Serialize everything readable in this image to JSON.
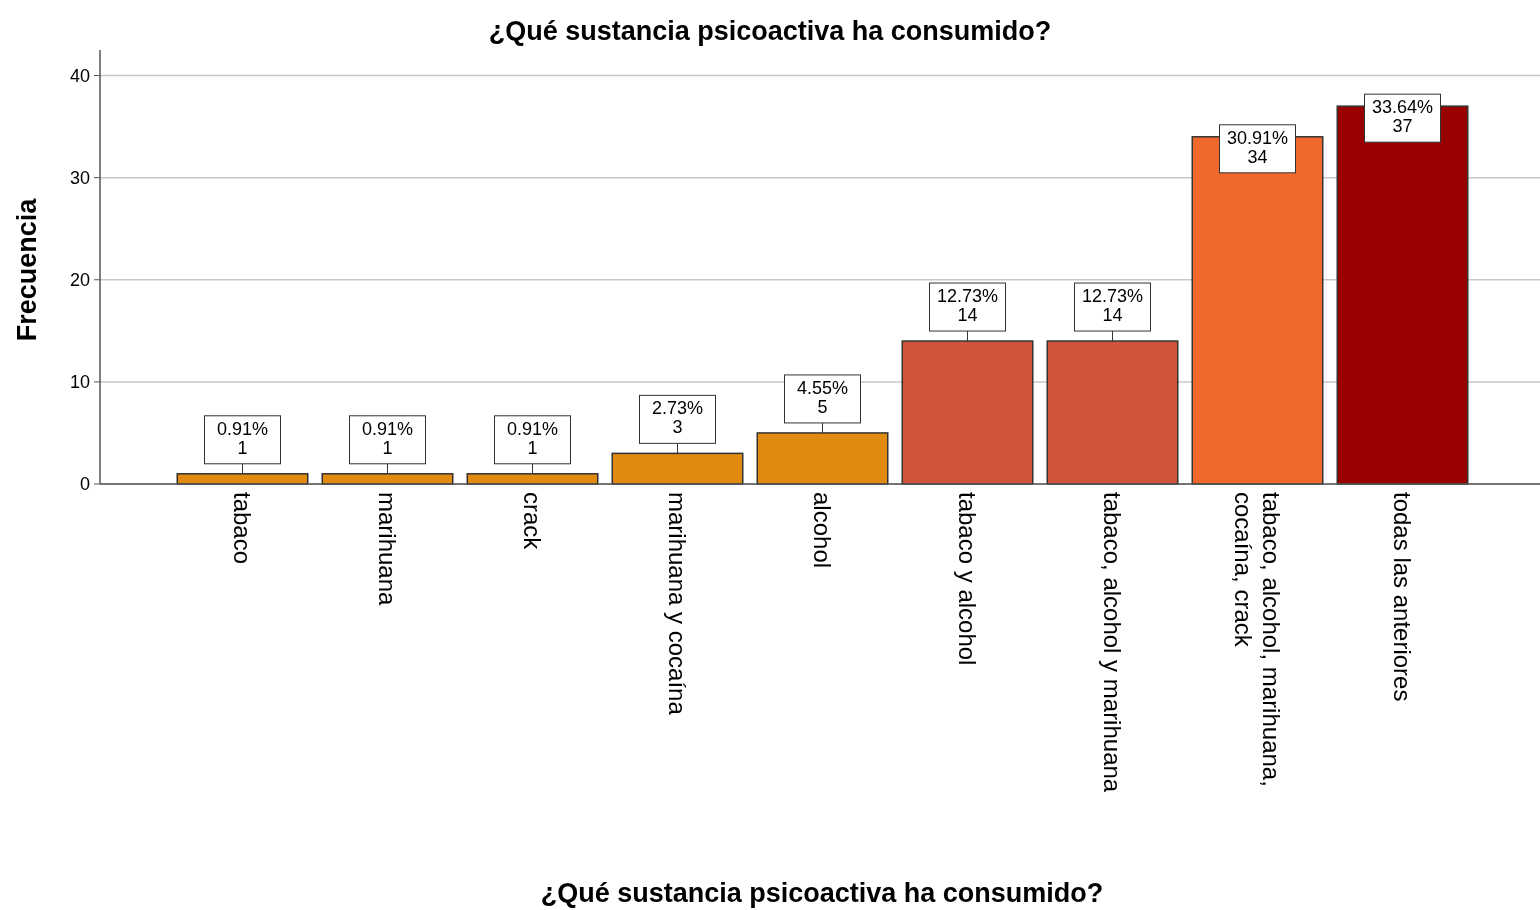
{
  "chart_data": {
    "type": "bar",
    "title": "¿Qué sustancia psicoactiva ha consumido?",
    "xlabel": "¿Qué sustancia psicoactiva ha consumido?",
    "ylabel": "Frecuencia",
    "categories": [
      "tabaco",
      "marihuana",
      "crack",
      "marihuana y cocaína",
      "alcohol",
      "tabaco y alcohol",
      "tabaco, alcohol y marihuana",
      "tabaco, alcohol, marihuana, cocaína, crack",
      "todas las anteriores"
    ],
    "values": [
      1,
      1,
      1,
      3,
      5,
      14,
      14,
      34,
      37
    ],
    "colors": [
      "#e08a10",
      "#e08a10",
      "#e08a10",
      "#e08a10",
      "#e08a10",
      "#d0543a",
      "#d0543a",
      "#f0682c",
      "#990000"
    ],
    "value_labels": [
      "0.91%\n1",
      "0.91%\n1",
      "0.91%\n1",
      "2.73%\n3",
      "4.55%\n5",
      "12.73%\n14",
      "12.73%\n14",
      "30.91%\n34",
      "33.64%\n37"
    ],
    "ylim": [
      0,
      42.5
    ],
    "yticks": [
      0,
      10,
      20,
      30,
      40
    ],
    "grid": "y"
  }
}
